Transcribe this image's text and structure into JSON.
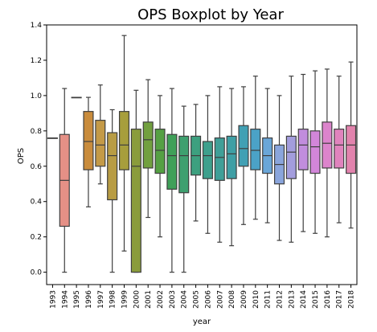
{
  "chart_data": {
    "type": "boxplot",
    "title": "OPS Boxplot by Year",
    "xlabel": "year",
    "ylabel": "OPS",
    "ylim": [
      -0.07,
      1.4
    ],
    "yticks": [
      "0.0",
      "0.2",
      "0.4",
      "0.6",
      "0.8",
      "1.0",
      "1.2",
      "1.4"
    ],
    "grid": false,
    "categories": [
      "1993",
      "1994",
      "1995",
      "1996",
      "1997",
      "1998",
      "1999",
      "2000",
      "2001",
      "2002",
      "2003",
      "2004",
      "2005",
      "2006",
      "2007",
      "2008",
      "2009",
      "2010",
      "2011",
      "2012",
      "2013",
      "2014",
      "2015",
      "2016",
      "2017",
      "2018"
    ],
    "series": [
      {
        "category": "1993",
        "whislo": 0.76,
        "q1": 0.76,
        "med": 0.76,
        "q3": 0.76,
        "whishi": 0.76,
        "color": "#e0746c"
      },
      {
        "category": "1994",
        "whislo": 0.0,
        "q1": 0.26,
        "med": 0.52,
        "q3": 0.78,
        "whishi": 1.04,
        "color": "#e59086"
      },
      {
        "category": "1995",
        "whislo": 0.99,
        "q1": 0.99,
        "med": 0.99,
        "q3": 0.99,
        "whishi": 0.99,
        "color": "#d98c55"
      },
      {
        "category": "1996",
        "whislo": 0.37,
        "q1": 0.58,
        "med": 0.74,
        "q3": 0.91,
        "whishi": 0.99,
        "color": "#c98c3c"
      },
      {
        "category": "1997",
        "whislo": 0.5,
        "q1": 0.6,
        "med": 0.72,
        "q3": 0.86,
        "whishi": 1.06,
        "color": "#c49a47"
      },
      {
        "category": "1998",
        "whislo": 0.0,
        "q1": 0.41,
        "med": 0.66,
        "q3": 0.79,
        "whishi": 0.92,
        "color": "#b89c44"
      },
      {
        "category": "1999",
        "whislo": 0.12,
        "q1": 0.58,
        "med": 0.72,
        "q3": 0.91,
        "whishi": 1.34,
        "color": "#a79e3c"
      },
      {
        "category": "2000",
        "whislo": 0.0,
        "q1": 0.0,
        "med": 0.6,
        "q3": 0.81,
        "whishi": 1.03,
        "color": "#8a9c3c"
      },
      {
        "category": "2001",
        "whislo": 0.31,
        "q1": 0.59,
        "med": 0.75,
        "q3": 0.85,
        "whishi": 1.09,
        "color": "#72a03f"
      },
      {
        "category": "2002",
        "whislo": 0.2,
        "q1": 0.56,
        "med": 0.69,
        "q3": 0.81,
        "whishi": 1.0,
        "color": "#55a043"
      },
      {
        "category": "2003",
        "whislo": 0.0,
        "q1": 0.47,
        "med": 0.66,
        "q3": 0.78,
        "whishi": 1.04,
        "color": "#3fa059"
      },
      {
        "category": "2004",
        "whislo": 0.0,
        "q1": 0.45,
        "med": 0.66,
        "q3": 0.77,
        "whishi": 0.94,
        "color": "#3ea06f"
      },
      {
        "category": "2005",
        "whislo": 0.29,
        "q1": 0.55,
        "med": 0.66,
        "q3": 0.77,
        "whishi": 0.95,
        "color": "#3da07f"
      },
      {
        "category": "2006",
        "whislo": 0.22,
        "q1": 0.53,
        "med": 0.66,
        "q3": 0.74,
        "whishi": 1.0,
        "color": "#3ea08d"
      },
      {
        "category": "2007",
        "whislo": 0.17,
        "q1": 0.52,
        "med": 0.65,
        "q3": 0.76,
        "whishi": 1.05,
        "color": "#3f9f98"
      },
      {
        "category": "2008",
        "whislo": 0.15,
        "q1": 0.53,
        "med": 0.67,
        "q3": 0.77,
        "whishi": 1.04,
        "color": "#3f9fa5"
      },
      {
        "category": "2009",
        "whislo": 0.27,
        "q1": 0.6,
        "med": 0.7,
        "q3": 0.83,
        "whishi": 1.05,
        "color": "#41a0b4"
      },
      {
        "category": "2010",
        "whislo": 0.3,
        "q1": 0.58,
        "med": 0.69,
        "q3": 0.81,
        "whishi": 1.11,
        "color": "#4ba2c7"
      },
      {
        "category": "2011",
        "whislo": 0.28,
        "q1": 0.56,
        "med": 0.66,
        "q3": 0.76,
        "whishi": 1.04,
        "color": "#6aa6d8"
      },
      {
        "category": "2012",
        "whislo": 0.18,
        "q1": 0.5,
        "med": 0.61,
        "q3": 0.72,
        "whishi": 1.0,
        "color": "#8aa5dc"
      },
      {
        "category": "2013",
        "whislo": 0.17,
        "q1": 0.53,
        "med": 0.68,
        "q3": 0.77,
        "whishi": 1.11,
        "color": "#a39ddd"
      },
      {
        "category": "2014",
        "whislo": 0.23,
        "q1": 0.58,
        "med": 0.72,
        "q3": 0.81,
        "whishi": 1.12,
        "color": "#c18ddd"
      },
      {
        "category": "2015",
        "whislo": 0.22,
        "q1": 0.56,
        "med": 0.71,
        "q3": 0.8,
        "whishi": 1.14,
        "color": "#d286d9"
      },
      {
        "category": "2016",
        "whislo": 0.2,
        "q1": 0.59,
        "med": 0.73,
        "q3": 0.85,
        "whishi": 1.15,
        "color": "#dc84cc"
      },
      {
        "category": "2017",
        "whislo": 0.28,
        "q1": 0.59,
        "med": 0.72,
        "q3": 0.81,
        "whishi": 1.11,
        "color": "#e083bd"
      },
      {
        "category": "2018",
        "whislo": 0.25,
        "q1": 0.56,
        "med": 0.72,
        "q3": 0.83,
        "whishi": 1.19,
        "color": "#e283ad"
      }
    ]
  }
}
